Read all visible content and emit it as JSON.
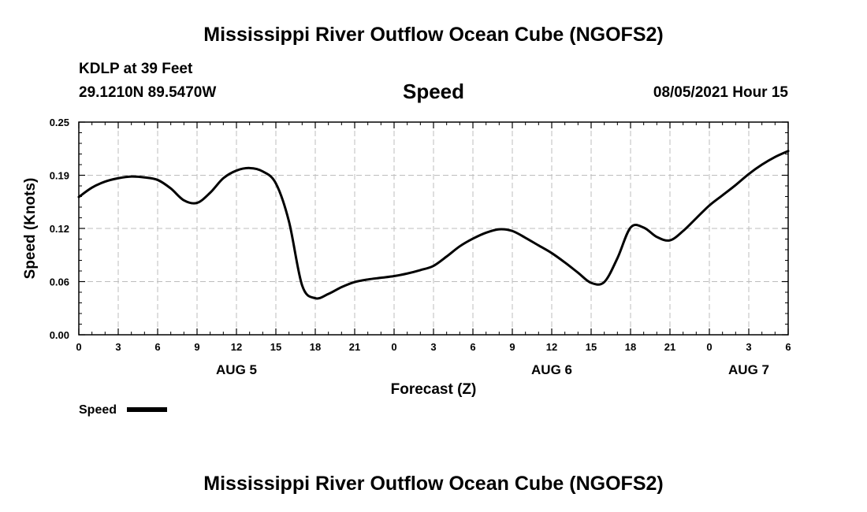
{
  "header": {
    "title": "Mississippi River Outflow Ocean Cube (NGOFS2)",
    "station": "KDLP at 39 Feet",
    "coords": "29.1210N  89.5470W",
    "parameter": "Speed",
    "timestamp": "08/05/2021 Hour 15"
  },
  "footer": {
    "title": "Mississippi River Outflow Ocean Cube (NGOFS2)"
  },
  "chart_data": {
    "type": "line",
    "title": "Speed",
    "xlabel": "Forecast (Z)",
    "ylabel": "Speed (Knots)",
    "xlim": [
      0,
      54
    ],
    "ylim": [
      0,
      0.25
    ],
    "yticks": [
      {
        "v": 0.0,
        "label": "0.00"
      },
      {
        "v": 0.0625,
        "label": "0.06"
      },
      {
        "v": 0.125,
        "label": "0.12"
      },
      {
        "v": 0.1875,
        "label": "0.19"
      },
      {
        "v": 0.25,
        "label": "0.25"
      }
    ],
    "xticks": [
      {
        "v": 0,
        "label": "0"
      },
      {
        "v": 3,
        "label": "3"
      },
      {
        "v": 6,
        "label": "6"
      },
      {
        "v": 9,
        "label": "9"
      },
      {
        "v": 12,
        "label": "12"
      },
      {
        "v": 15,
        "label": "15"
      },
      {
        "v": 18,
        "label": "18"
      },
      {
        "v": 21,
        "label": "21"
      },
      {
        "v": 24,
        "label": "0"
      },
      {
        "v": 27,
        "label": "3"
      },
      {
        "v": 30,
        "label": "6"
      },
      {
        "v": 33,
        "label": "9"
      },
      {
        "v": 36,
        "label": "12"
      },
      {
        "v": 39,
        "label": "15"
      },
      {
        "v": 42,
        "label": "18"
      },
      {
        "v": 45,
        "label": "21"
      },
      {
        "v": 48,
        "label": "0"
      },
      {
        "v": 51,
        "label": "3"
      },
      {
        "v": 54,
        "label": "6"
      }
    ],
    "date_labels": [
      {
        "v": 12,
        "label": "AUG 5"
      },
      {
        "v": 36,
        "label": "AUG 6"
      },
      {
        "v": 51,
        "label": "AUG 7"
      }
    ],
    "grid": true,
    "legend": "bottom-left",
    "series": [
      {
        "name": "Speed",
        "color": "#000000",
        "x": [
          0,
          1,
          2,
          3,
          4,
          5,
          6,
          7,
          8,
          9,
          10,
          11,
          12,
          13,
          14,
          15,
          16,
          17,
          18,
          19,
          20,
          21,
          22,
          23,
          24,
          25,
          26,
          27,
          28,
          29,
          30,
          31,
          32,
          33,
          34,
          35,
          36,
          37,
          38,
          39,
          40,
          41,
          42,
          43,
          44,
          45,
          46,
          47,
          48,
          49,
          50,
          51,
          52,
          53,
          54
        ],
        "y": [
          0.162,
          0.173,
          0.18,
          0.184,
          0.186,
          0.185,
          0.182,
          0.172,
          0.158,
          0.155,
          0.167,
          0.184,
          0.193,
          0.196,
          0.192,
          0.178,
          0.133,
          0.058,
          0.043,
          0.048,
          0.056,
          0.062,
          0.065,
          0.067,
          0.069,
          0.072,
          0.076,
          0.081,
          0.092,
          0.104,
          0.113,
          0.12,
          0.124,
          0.122,
          0.114,
          0.105,
          0.096,
          0.085,
          0.073,
          0.061,
          0.062,
          0.09,
          0.126,
          0.126,
          0.115,
          0.111,
          0.122,
          0.137,
          0.152,
          0.164,
          0.176,
          0.189,
          0.2,
          0.209,
          0.216
        ]
      }
    ]
  }
}
